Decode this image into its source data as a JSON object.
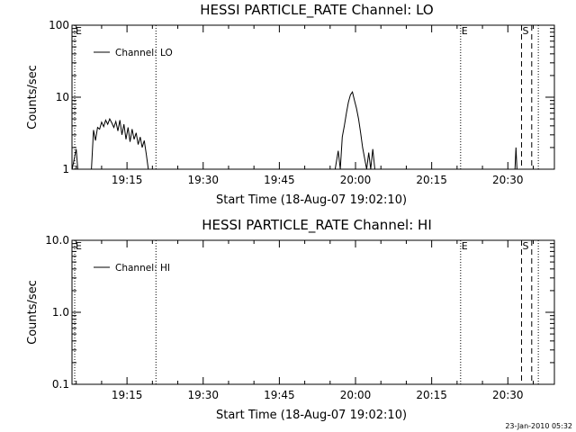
{
  "chart_data": [
    {
      "type": "line",
      "title": "HESSI PARTICLE_RATE Channel: LO",
      "xlabel": "Start Time (18-Aug-07 19:02:10)",
      "ylabel": "Counts/sec",
      "yscale": "log",
      "ylim": [
        1,
        100
      ],
      "yticks": [
        1,
        10,
        100
      ],
      "ytick_labels": [
        "1",
        "10",
        "100"
      ],
      "xlim": [
        4.1667,
        99.1667
      ],
      "xticks": [
        15,
        30,
        45,
        60,
        75,
        90
      ],
      "xtick_labels": [
        "19:15",
        "19:30",
        "19:45",
        "20:00",
        "20:15",
        "20:30"
      ],
      "grid": false,
      "legend": {
        "position": "top-left",
        "entries": [
          "Channel: LO"
        ]
      },
      "markers": [
        {
          "x": 4.7,
          "style": "dotted",
          "label": "E"
        },
        {
          "x": 20.7,
          "style": "dotted",
          "label": ""
        },
        {
          "x": 80.7,
          "style": "dotted",
          "label": "E"
        },
        {
          "x": 92.7,
          "style": "dashed",
          "label": "S"
        },
        {
          "x": 94.7,
          "style": "dashed",
          "label": ""
        },
        {
          "x": 96.0,
          "style": "dotted",
          "label": ""
        }
      ],
      "series": [
        {
          "name": "Channel: LO",
          "x": [
            4.2,
            5.0,
            5.3,
            5.6,
            7.0,
            8.0,
            8.4,
            8.8,
            9.2,
            9.6,
            10.0,
            10.4,
            10.8,
            11.2,
            11.6,
            12.0,
            12.4,
            12.8,
            13.2,
            13.6,
            14.0,
            14.4,
            14.8,
            15.2,
            15.6,
            16.0,
            16.4,
            16.8,
            17.2,
            17.6,
            18.0,
            18.4,
            18.8,
            19.2,
            56.0,
            56.6,
            57.0,
            57.4,
            57.8,
            58.2,
            58.6,
            59.0,
            59.4,
            59.8,
            60.2,
            60.6,
            61.0,
            61.4,
            61.8,
            62.2,
            62.6,
            63.0,
            63.4,
            63.8,
            91.4,
            91.6,
            91.8
          ],
          "y": [
            1.0,
            1.9,
            1.0,
            1.0,
            1.0,
            1.0,
            3.5,
            2.5,
            3.8,
            3.6,
            4.5,
            3.9,
            4.8,
            4.2,
            5.0,
            4.4,
            3.8,
            4.6,
            3.4,
            4.8,
            3.0,
            4.2,
            2.6,
            3.8,
            2.4,
            3.6,
            2.6,
            3.2,
            2.2,
            2.8,
            2.0,
            2.5,
            1.6,
            1.0,
            1.0,
            1.8,
            1.0,
            2.8,
            4.0,
            6.0,
            8.5,
            10.8,
            11.8,
            9.0,
            7.0,
            5.0,
            3.2,
            2.0,
            1.4,
            1.0,
            1.7,
            1.0,
            1.9,
            1.0,
            1.0,
            2.0,
            1.0
          ]
        }
      ]
    },
    {
      "type": "line",
      "title": "HESSI PARTICLE_RATE Channel: HI",
      "xlabel": "Start Time (18-Aug-07 19:02:10)",
      "ylabel": "Counts/sec",
      "yscale": "log",
      "ylim": [
        0.1,
        10
      ],
      "yticks": [
        0.1,
        1,
        10
      ],
      "ytick_labels": [
        "0.1",
        "1.0",
        "10.0"
      ],
      "xlim": [
        4.1667,
        99.1667
      ],
      "xticks": [
        15,
        30,
        45,
        60,
        75,
        90
      ],
      "xtick_labels": [
        "19:15",
        "19:30",
        "19:45",
        "20:00",
        "20:15",
        "20:30"
      ],
      "grid": false,
      "legend": {
        "position": "top-left",
        "entries": [
          "Channel: HI"
        ]
      },
      "markers": [
        {
          "x": 4.7,
          "style": "dotted",
          "label": "E"
        },
        {
          "x": 20.7,
          "style": "dotted",
          "label": ""
        },
        {
          "x": 80.7,
          "style": "dotted",
          "label": "E"
        },
        {
          "x": 92.7,
          "style": "dashed",
          "label": "S"
        },
        {
          "x": 94.7,
          "style": "dashed",
          "label": ""
        },
        {
          "x": 96.0,
          "style": "dotted",
          "label": ""
        }
      ],
      "series": [
        {
          "name": "Channel: HI",
          "x": [],
          "y": []
        }
      ]
    }
  ],
  "footer": {
    "timestamp": "23-Jan-2010 05:32"
  }
}
